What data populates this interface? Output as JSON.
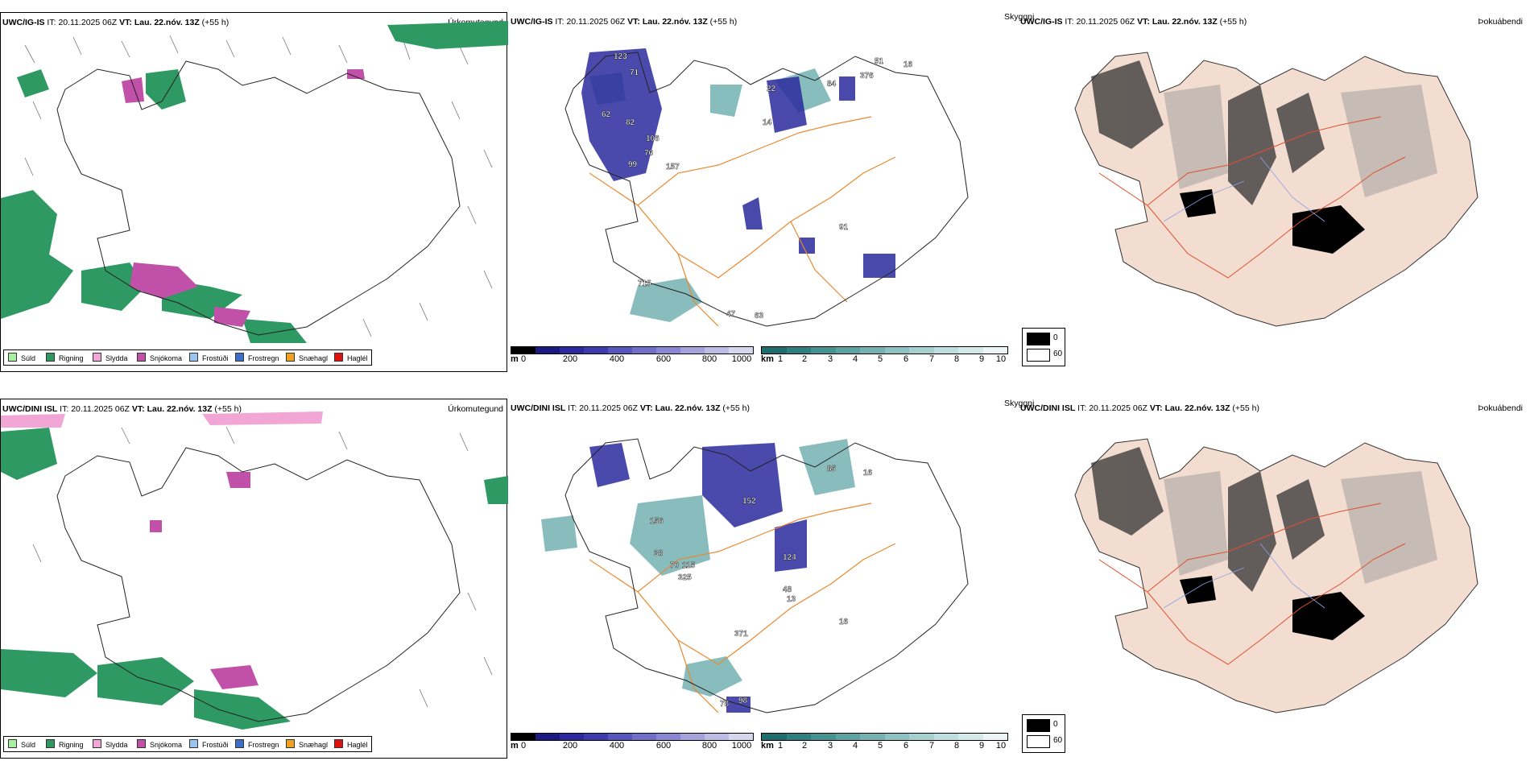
{
  "rows": [
    {
      "model": "UWC/IG-IS",
      "it_label": "IT:",
      "it_value": "20.11.2025 06Z",
      "vt_label": "VT:",
      "vt_value": "Lau. 22.nóv. 13Z",
      "lead": "(+55 h)"
    },
    {
      "model": "UWC/DINI ISL",
      "it_label": "IT:",
      "it_value": "20.11.2025 06Z",
      "vt_label": "VT:",
      "vt_value": "Lau. 22.nóv. 13Z",
      "lead": "(+55 h)"
    }
  ],
  "panels": {
    "precip_type": {
      "variable": "Úrkomutegund"
    },
    "visibility": {
      "variable": "Skyggni"
    },
    "cloud": {
      "variable": "Þokuábendi"
    }
  },
  "precip_legend": [
    {
      "label": "Súld",
      "color": "#a6f0a0"
    },
    {
      "label": "Rigning",
      "color": "#2e9963"
    },
    {
      "label": "Slydda",
      "color": "#f2a6d6"
    },
    {
      "label": "Snjókoma",
      "color": "#c050a8"
    },
    {
      "label": "Frostúði",
      "color": "#9cc4f0"
    },
    {
      "label": "Frostregn",
      "color": "#3d6fc9"
    },
    {
      "label": "Snæhagl",
      "color": "#f2a020"
    },
    {
      "label": "Haglél",
      "color": "#e01010"
    }
  ],
  "ceiling_scale": {
    "unit": "m",
    "ticks": [
      "0",
      "200",
      "400",
      "600",
      "800",
      "1000"
    ],
    "colors": [
      "#000000",
      "#1a1a80",
      "#2a2a9e",
      "#3c3cae",
      "#5656bc",
      "#6f6fc8",
      "#8888d2",
      "#a2a2dc",
      "#bcbce6",
      "#d6d6ef"
    ]
  },
  "visibility_scale": {
    "unit": "km",
    "ticks": [
      "1",
      "2",
      "3",
      "4",
      "5",
      "6",
      "7",
      "8",
      "9",
      "10"
    ],
    "colors": [
      "#1f6e6e",
      "#2e8080",
      "#459292",
      "#5ca2a2",
      "#74b2b2",
      "#8cc2c2",
      "#a4d0d0",
      "#bcdede",
      "#d4eaea",
      "#ecf6f6"
    ]
  },
  "cloud_scale": {
    "low_label": "0",
    "high_label": "60",
    "low_color": "#000000",
    "high_color": "#ffffff"
  },
  "map_labels_top": [
    "123",
    "71",
    "62",
    "82",
    "106",
    "76",
    "99",
    "157",
    "376",
    "51",
    "16",
    "22",
    "14",
    "84",
    "91",
    "715",
    "47",
    "63"
  ],
  "map_labels_bottom": [
    "156",
    "152",
    "124",
    "325",
    "70",
    "115",
    "38",
    "48",
    "13",
    "16",
    "371",
    "98",
    "78",
    "16",
    "85"
  ]
}
